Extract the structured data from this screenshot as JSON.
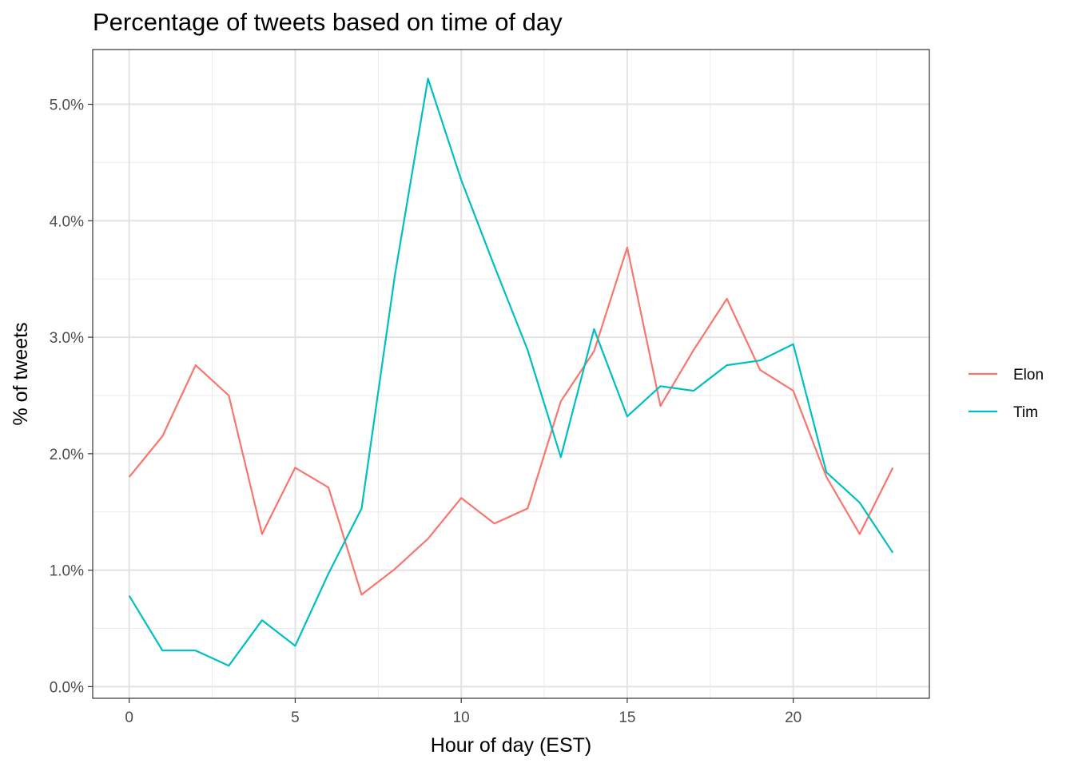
{
  "chart_data": {
    "type": "line",
    "title": "Percentage of tweets based on time of day",
    "xlabel": "Hour of day (EST)",
    "ylabel": "% of tweets",
    "xlim": [
      -1.1,
      24.1
    ],
    "ylim": [
      -0.1,
      5.47
    ],
    "x_ticks": [
      0,
      5,
      10,
      15,
      20
    ],
    "x_tick_labels": [
      "0",
      "5",
      "10",
      "15",
      "20"
    ],
    "y_ticks": [
      0,
      1,
      2,
      3,
      4,
      5
    ],
    "y_tick_labels": [
      "0.0%",
      "1.0%",
      "2.0%",
      "3.0%",
      "4.0%",
      "5.0%"
    ],
    "grid": true,
    "legend_position": "right",
    "x": [
      0,
      1,
      2,
      3,
      4,
      5,
      6,
      7,
      8,
      9,
      10,
      11,
      12,
      13,
      14,
      15,
      16,
      17,
      18,
      19,
      20,
      21,
      22,
      23
    ],
    "series": [
      {
        "name": "Elon",
        "color": "#F8766D",
        "values": [
          1.8,
          2.15,
          2.76,
          2.5,
          1.31,
          1.88,
          1.71,
          0.79,
          1.01,
          1.27,
          1.62,
          1.4,
          1.53,
          2.45,
          2.88,
          3.77,
          2.41,
          2.89,
          3.33,
          2.72,
          2.54,
          1.8,
          1.31,
          1.88
        ]
      },
      {
        "name": "Tim",
        "color": "#00BFC4",
        "values": [
          0.78,
          0.31,
          0.31,
          0.18,
          0.57,
          0.35,
          0.97,
          1.53,
          3.53,
          5.22,
          4.35,
          3.61,
          2.89,
          1.97,
          3.07,
          2.32,
          2.58,
          2.54,
          2.76,
          2.8,
          2.94,
          1.84,
          1.58,
          1.15
        ]
      }
    ]
  }
}
